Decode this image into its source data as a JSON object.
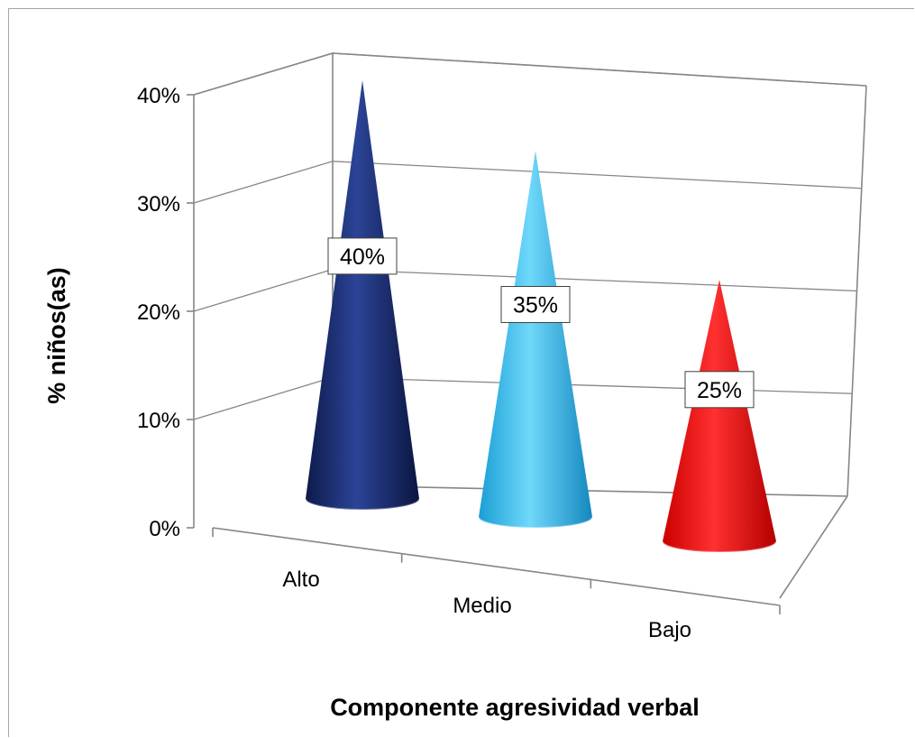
{
  "chart_data": {
    "type": "bar",
    "style": "3d-cone",
    "categories": [
      "Alto",
      "Medio",
      "Bajo"
    ],
    "values": [
      40,
      35,
      25
    ],
    "data_labels": [
      "40%",
      "35%",
      "25%"
    ],
    "colors": [
      "#1a2d6e",
      "#33b8e8",
      "#ee1111"
    ],
    "xlabel": "Componente agresividad verbal",
    "ylabel": "%  niños(as)",
    "ylim": [
      0,
      40
    ],
    "yticks": [
      "0%",
      "10%",
      "20%",
      "30%",
      "40%"
    ],
    "grid": true,
    "legend": "none"
  }
}
